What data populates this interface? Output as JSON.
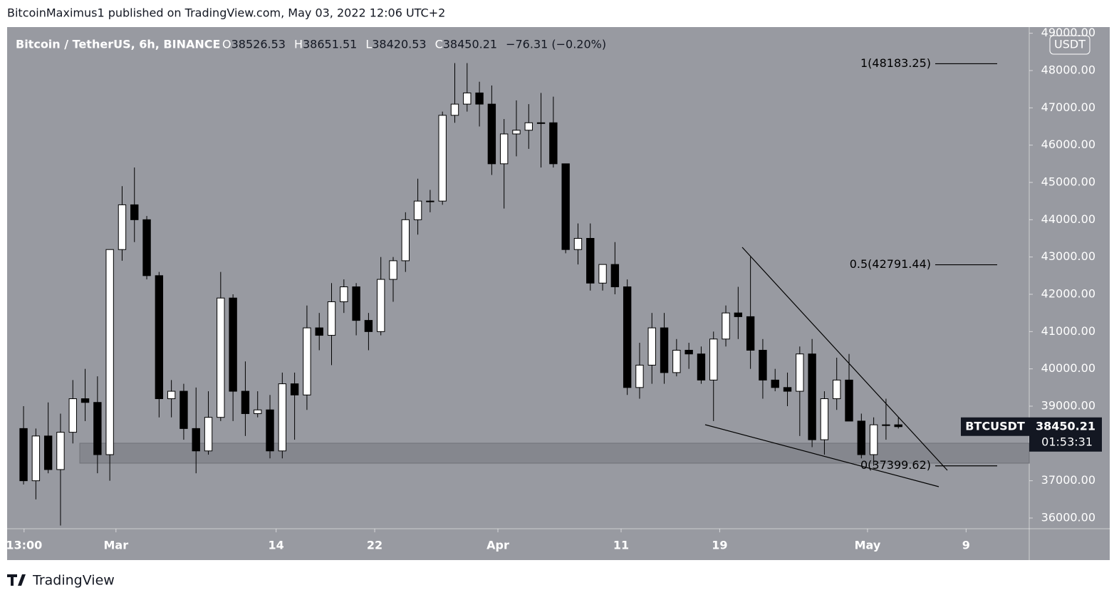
{
  "header": {
    "byline": "BitcoinMaximus1 published on TradingView.com, May 03, 2022 12:06 UTC+2",
    "footer": "TradingView"
  },
  "chart_data": {
    "type": "candlestick",
    "symbol": "Bitcoin / TetherUS, 6h, BINANCE",
    "ohlc": [
      {
        "label": "O",
        "value": 38526.53
      },
      {
        "label": "H",
        "value": 38651.51
      },
      {
        "label": "L",
        "value": 38420.53
      },
      {
        "label": "C",
        "value": 38450.21
      }
    ],
    "change": "−76.31 (−0.20%)",
    "currency": "USDT",
    "ticker": "BTCUSDT",
    "last_price": {
      "value": 38450.21,
      "label": "38450.21"
    },
    "countdown": "01:53:31",
    "up_color": "#ffffff",
    "down_color": "#000000",
    "background": "#989aa1",
    "x": [
      "2022-02-21",
      "2022-02-22",
      "2022-02-23",
      "2022-02-24",
      "2022-02-25",
      "2022-02-26",
      "2022-02-27",
      "2022-02-28",
      "2022-03-01",
      "2022-03-02",
      "2022-03-03",
      "2022-03-04",
      "2022-03-05",
      "2022-03-06",
      "2022-03-07",
      "2022-03-08",
      "2022-03-09",
      "2022-03-10",
      "2022-03-11",
      "2022-03-12",
      "2022-03-13",
      "2022-03-14",
      "2022-03-15",
      "2022-03-16",
      "2022-03-17",
      "2022-03-18",
      "2022-03-19",
      "2022-03-20",
      "2022-03-21",
      "2022-03-22",
      "2022-03-23",
      "2022-03-24",
      "2022-03-25",
      "2022-03-26",
      "2022-03-27",
      "2022-03-28",
      "2022-03-29",
      "2022-03-30",
      "2022-03-31",
      "2022-04-01",
      "2022-04-02",
      "2022-04-03",
      "2022-04-04",
      "2022-04-05",
      "2022-04-06",
      "2022-04-07",
      "2022-04-08",
      "2022-04-09",
      "2022-04-10",
      "2022-04-11",
      "2022-04-12",
      "2022-04-13",
      "2022-04-14",
      "2022-04-15",
      "2022-04-16",
      "2022-04-17",
      "2022-04-18",
      "2022-04-19",
      "2022-04-20",
      "2022-04-21",
      "2022-04-22",
      "2022-04-23",
      "2022-04-24",
      "2022-04-25",
      "2022-04-26",
      "2022-04-27",
      "2022-04-28",
      "2022-04-29",
      "2022-04-30",
      "2022-05-01",
      "2022-05-02",
      "2022-05-03"
    ],
    "open": [
      38400,
      37000,
      38200,
      37300,
      38300,
      39200,
      39100,
      37700,
      43200,
      44400,
      44000,
      42500,
      39200,
      39400,
      38400,
      37800,
      38700,
      41900,
      39400,
      38800,
      38900,
      37800,
      39600,
      39300,
      41100,
      40900,
      41800,
      42200,
      41300,
      41000,
      42400,
      42900,
      44000,
      44500,
      44500,
      46800,
      47100,
      47400,
      47100,
      45500,
      46300,
      46400,
      46600,
      46600,
      45500,
      43200,
      43500,
      42300,
      42800,
      42200,
      39500,
      40100,
      41100,
      39900,
      40500,
      40400,
      39700,
      40800,
      41500,
      41400,
      40500,
      39700,
      39500,
      39400,
      40400,
      38100,
      39200,
      39700,
      38600,
      37700,
      38500,
      38500
    ],
    "high": [
      39000,
      38400,
      39100,
      38800,
      39700,
      40000,
      39800,
      43200,
      44900,
      45400,
      44100,
      42600,
      39700,
      39600,
      39500,
      39400,
      42600,
      42000,
      40200,
      39400,
      39300,
      39900,
      39900,
      41700,
      41500,
      42300,
      42400,
      42300,
      41500,
      43000,
      43000,
      44200,
      45100,
      44800,
      46900,
      48200,
      48200,
      47700,
      47600,
      46700,
      47200,
      47100,
      47400,
      47300,
      45500,
      43900,
      43900,
      42800,
      43400,
      42400,
      40700,
      41500,
      41500,
      40800,
      40700,
      40600,
      41000,
      41700,
      42200,
      43000,
      40800,
      40000,
      39900,
      40600,
      40800,
      39400,
      40300,
      40400,
      38800,
      38700,
      39200,
      38700
    ],
    "low": [
      36900,
      36500,
      37200,
      35800,
      38000,
      38600,
      37200,
      37000,
      42900,
      43400,
      42400,
      38700,
      38700,
      38100,
      37200,
      37700,
      38600,
      38600,
      38200,
      38700,
      37600,
      37600,
      38100,
      38900,
      40500,
      40100,
      41500,
      40900,
      40500,
      40900,
      41800,
      42600,
      43600,
      44200,
      44400,
      46600,
      46900,
      46500,
      45200,
      44300,
      45700,
      45900,
      45400,
      45400,
      43100,
      42800,
      42100,
      42100,
      42000,
      39300,
      39200,
      39600,
      39600,
      39800,
      40000,
      39600,
      38600,
      40600,
      40800,
      40000,
      39200,
      39400,
      39000,
      38200,
      37900,
      37700,
      38900,
      38600,
      37600,
      37400,
      38100,
      38400
    ],
    "close": [
      37000,
      38200,
      37300,
      38300,
      39200,
      39100,
      37700,
      43200,
      44400,
      44000,
      42500,
      39200,
      39400,
      38400,
      37800,
      38700,
      41900,
      39400,
      38800,
      38900,
      37800,
      39600,
      39300,
      41100,
      40900,
      41800,
      42200,
      41300,
      41000,
      42400,
      42900,
      44000,
      44500,
      44500,
      46800,
      47100,
      47400,
      47100,
      45500,
      46300,
      46400,
      46600,
      46600,
      45500,
      43200,
      43500,
      42300,
      42800,
      42200,
      39500,
      40100,
      41100,
      39900,
      40500,
      40400,
      39700,
      40800,
      41500,
      41400,
      40500,
      39700,
      39500,
      39400,
      40400,
      38100,
      39200,
      39700,
      38600,
      37700,
      38500,
      38500,
      38450
    ],
    "xlim": [
      "2022-02-20T04:00",
      "2022-05-14T03:00"
    ],
    "xticks": [
      {
        "value": "2022-02-21T13:00",
        "label": "13:00"
      },
      {
        "value": "2022-03-01T00:00",
        "label": "Mar"
      },
      {
        "value": "2022-03-14T00:00",
        "label": "14"
      },
      {
        "value": "2022-03-22T00:00",
        "label": "22"
      },
      {
        "value": "2022-04-01T00:00",
        "label": "Apr"
      },
      {
        "value": "2022-04-11T00:00",
        "label": "11"
      },
      {
        "value": "2022-04-19T00:00",
        "label": "19"
      },
      {
        "value": "2022-05-01T00:00",
        "label": "May"
      },
      {
        "value": "2022-05-09T00:00",
        "label": "9"
      }
    ],
    "ylim": [
      35713,
      49166
    ],
    "yticks": [
      {
        "value": 36000,
        "label": "36000.00"
      },
      {
        "value": 37000,
        "label": "37000.00"
      },
      {
        "value": 38000,
        "label": "38000.00"
      },
      {
        "value": 39000,
        "label": "39000.00"
      },
      {
        "value": 40000,
        "label": "40000.00"
      },
      {
        "value": 41000,
        "label": "41000.00"
      },
      {
        "value": 42000,
        "label": "42000.00"
      },
      {
        "value": 43000,
        "label": "43000.00"
      },
      {
        "value": 44000,
        "label": "44000.00"
      },
      {
        "value": 45000,
        "label": "45000.00"
      },
      {
        "value": 46000,
        "label": "46000.00"
      },
      {
        "value": 47000,
        "label": "47000.00"
      },
      {
        "value": 48000,
        "label": "48000.00"
      },
      {
        "value": 49000,
        "label": "49000.00"
      }
    ],
    "fib_levels": [
      {
        "label": "1(48183.25)",
        "value": 48183.25
      },
      {
        "label": "0.5(42791.44)",
        "value": 42791.44
      },
      {
        "label": "0(37399.62)",
        "value": 37399.62
      }
    ]
  }
}
